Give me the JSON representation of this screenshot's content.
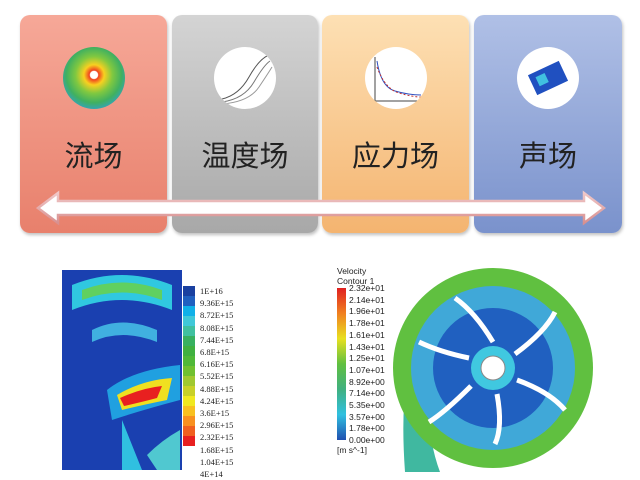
{
  "fields": [
    {
      "label": "流场",
      "color": "#f09080"
    },
    {
      "label": "温度场",
      "color": "#bbbbbb"
    },
    {
      "label": "应力场",
      "color": "#f8c890"
    },
    {
      "label": "声场",
      "color": "#90a6d8"
    }
  ],
  "arrow": {
    "direction": "bidirectional"
  },
  "left_legend": {
    "values": [
      "1E+16",
      "9.36E+15",
      "8.72E+15",
      "8.08E+15",
      "7.44E+15",
      "6.8E+15",
      "6.16E+15",
      "5.52E+15",
      "4.88E+15",
      "4.24E+15",
      "3.6E+15",
      "2.96E+15",
      "2.32E+15",
      "1.68E+15",
      "1.04E+15",
      "4E+14"
    ],
    "colors": [
      "#1a40a0",
      "#2060c0",
      "#10b0e8",
      "#40c8d8",
      "#40c0a0",
      "#38b060",
      "#40b040",
      "#50b838",
      "#70c030",
      "#a0c830",
      "#c8d028",
      "#f0e820",
      "#f8c020",
      "#f89020",
      "#f06020",
      "#e82020"
    ]
  },
  "right_legend": {
    "title": "Velocity",
    "subtitle": "Contour 1",
    "unit": "[m s^-1]",
    "values": [
      "2.32e+01",
      "2.14e+01",
      "1.96e+01",
      "1.78e+01",
      "1.61e+01",
      "1.43e+01",
      "1.25e+01",
      "1.07e+01",
      "8.92e+00",
      "7.14e+00",
      "5.35e+00",
      "3.57e+00",
      "1.78e+00",
      "0.00e+00"
    ]
  }
}
